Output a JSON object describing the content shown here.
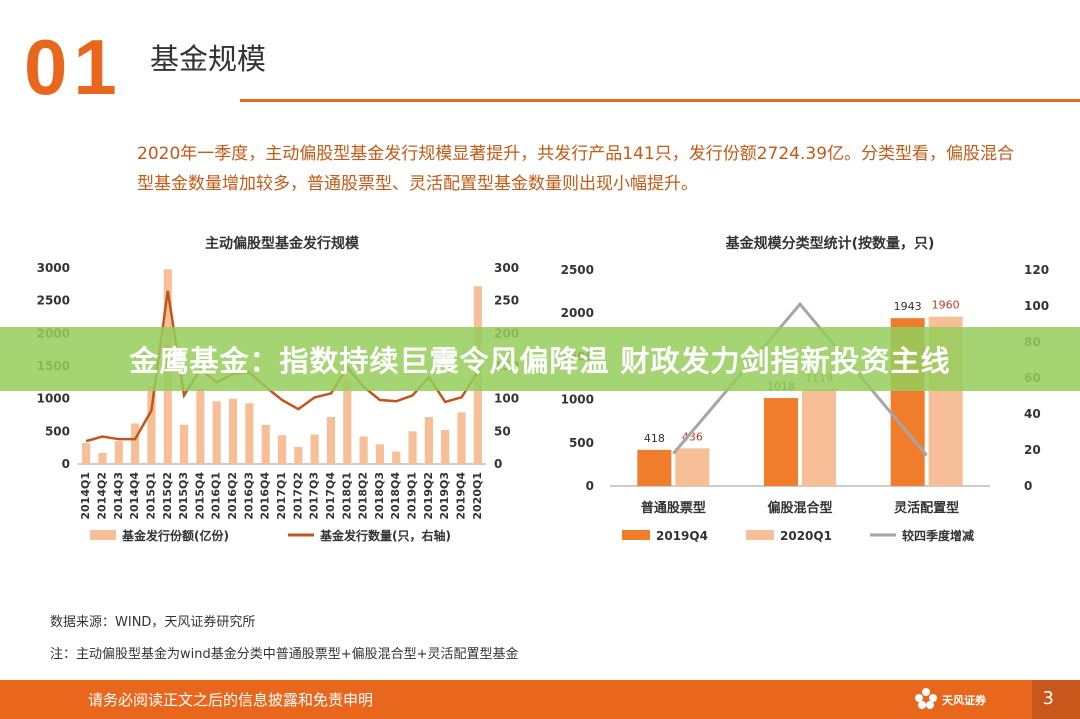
{
  "section": {
    "number": "01",
    "title": "基金规模"
  },
  "summary": "2020年一季度，主动偏股型基金发行规模显著提升，共发行产品141只，发行份额2724.39亿。分类型看，偏股混合型基金数量增加较多，普通股票型、灵活配置型基金数量则出现小幅提升。",
  "banner": "金鹰基金：指数持续巨震令风偏降温 财政发力剑指新投资主线",
  "sources": {
    "source": "数据来源：WIND，天风证券研究所",
    "note": "注：主动偏股型基金为wind基金分类中普通股票型+偏股混合型+灵活配置型基金"
  },
  "footer": {
    "disclaimer": "请务必阅读正文之后的信息披露和免责申明",
    "logo": "天风证券",
    "page": "3"
  },
  "colors": {
    "accent": "#e8671d",
    "bar_light": "#f7bf98",
    "bar_dark": "#ef7d2b",
    "line_gray": "#a6a6a6",
    "red_label": "#c0392b"
  },
  "chart_data": [
    {
      "type": "bar",
      "title": "主动偏股型基金发行规模",
      "categories": [
        "2014Q1",
        "2014Q2",
        "2014Q3",
        "2014Q4",
        "2015Q1",
        "2015Q2",
        "2015Q3",
        "2015Q4",
        "2016Q1",
        "2016Q2",
        "2016Q3",
        "2016Q4",
        "2017Q1",
        "2017Q2",
        "2017Q3",
        "2017Q4",
        "2018Q1",
        "2018Q2",
        "2018Q3",
        "2018Q4",
        "2019Q1",
        "2019Q2",
        "2019Q3",
        "2019Q4",
        "2020Q1"
      ],
      "ylim": [
        0,
        3000
      ],
      "yticks": [
        "0",
        "500",
        "1000",
        "1500",
        "2000",
        "2500",
        "3000"
      ],
      "y2lim": [
        0,
        300
      ],
      "y2ticks": [
        "0",
        "50",
        "100",
        "150",
        "200",
        "250",
        "300"
      ],
      "series": [
        {
          "name": "基金发行份额(亿份)",
          "kind": "bar",
          "axis": "left",
          "values": [
            320,
            170,
            350,
            620,
            1200,
            2980,
            600,
            1150,
            960,
            1000,
            930,
            600,
            440,
            260,
            450,
            720,
            1280,
            420,
            300,
            190,
            500,
            720,
            520,
            790,
            2720
          ]
        },
        {
          "name": "基金发行数量(只，右轴)",
          "kind": "line",
          "axis": "right",
          "values": [
            35,
            42,
            38,
            38,
            82,
            265,
            105,
            145,
            125,
            138,
            140,
            118,
            98,
            84,
            102,
            108,
            148,
            118,
            98,
            96,
            105,
            133,
            95,
            102,
            141
          ]
        }
      ],
      "legend_position": "bottom"
    },
    {
      "type": "bar",
      "title": "基金规模分类型统计(按数量，只)",
      "categories": [
        "普通股票型",
        "偏股混合型",
        "灵活配置型"
      ],
      "ylim": [
        0,
        2500
      ],
      "yticks": [
        "0",
        "500",
        "1000",
        "1500",
        "2000",
        "2500"
      ],
      "y2lim": [
        0,
        120
      ],
      "y2ticks": [
        "0",
        "20",
        "40",
        "60",
        "80",
        "100",
        "120"
      ],
      "series": [
        {
          "name": "2019Q4",
          "kind": "bar",
          "axis": "left",
          "values": [
            418,
            1018,
            1943
          ],
          "labels": [
            "418",
            "1018",
            "1943"
          ]
        },
        {
          "name": "2020Q1",
          "kind": "bar",
          "axis": "left",
          "values": [
            436,
            1119,
            1960
          ],
          "labels": [
            "436",
            "1119",
            "1960"
          ]
        },
        {
          "name": "较四季度增减",
          "kind": "line",
          "axis": "right",
          "values": [
            18,
            101,
            17
          ]
        }
      ],
      "legend_position": "bottom"
    }
  ]
}
